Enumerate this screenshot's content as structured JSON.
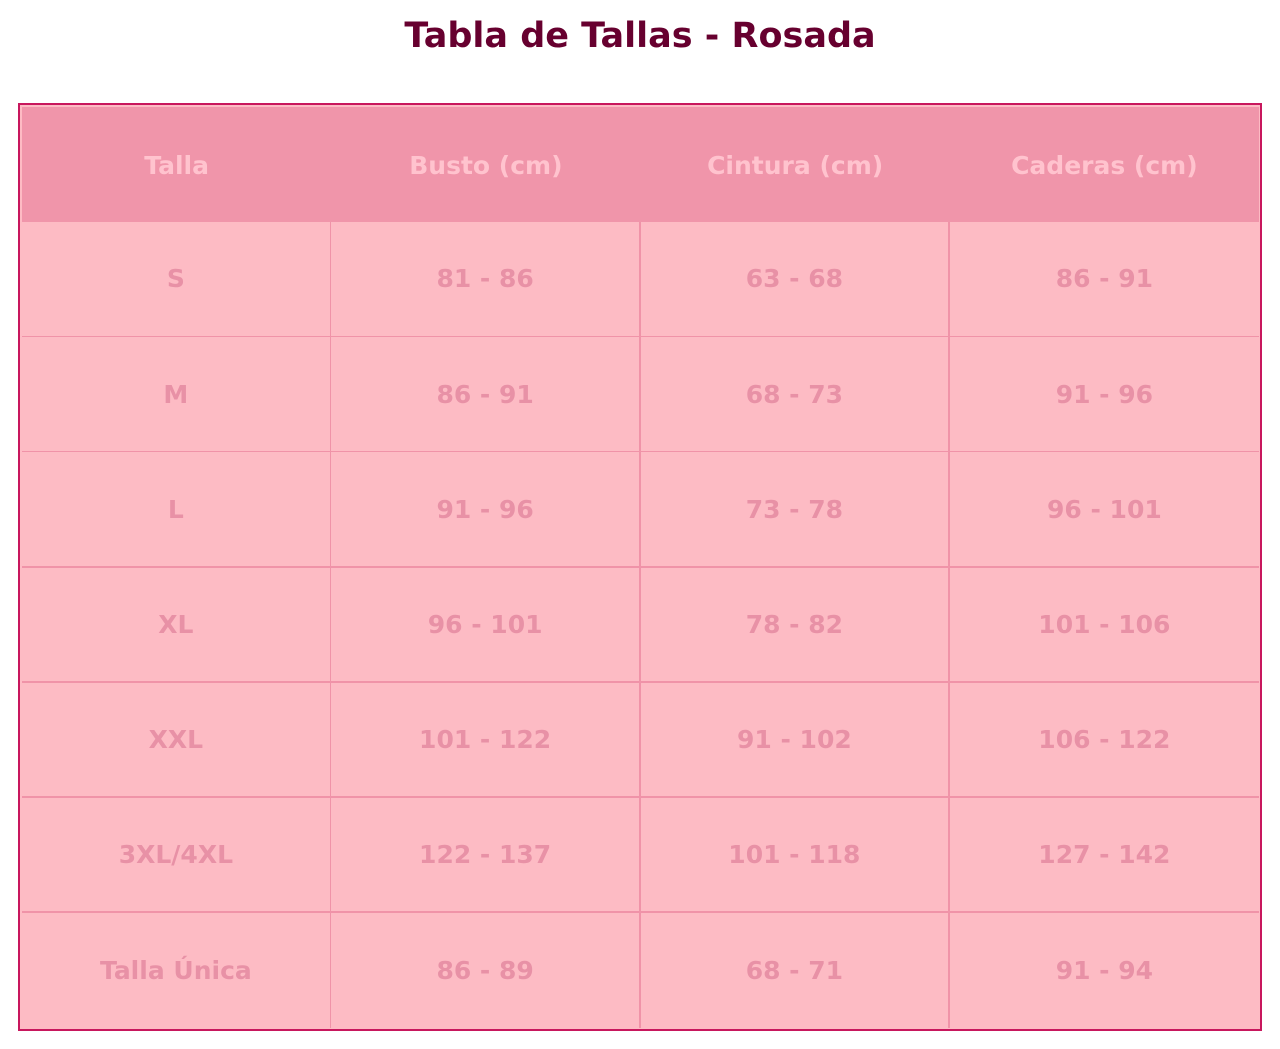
{
  "chart_data": {
    "type": "table",
    "title": "Tabla de Tallas - Rosada",
    "columns": [
      "Talla",
      "Busto (cm)",
      "Cintura (cm)",
      "Caderas (cm)"
    ],
    "rows": [
      [
        "S",
        "81 - 86",
        "63 - 68",
        "86 - 91"
      ],
      [
        "M",
        "86 - 91",
        "68 - 73",
        "91 - 96"
      ],
      [
        "L",
        "91 - 96",
        "73 - 78",
        "96 - 101"
      ],
      [
        "XL",
        "96 - 101",
        "78 - 82",
        "101 - 106"
      ],
      [
        "XXL",
        "101 - 122",
        "91 - 102",
        "106 - 122"
      ],
      [
        "3XL/4XL",
        "122 - 137",
        "101 - 118",
        "127 - 142"
      ],
      [
        "Talla Única",
        "86 - 89",
        "68 - 71",
        "91 - 94"
      ]
    ],
    "colors": {
      "title": "#67002F",
      "border": "#C8175D",
      "header_fill": "#F095AA",
      "header_text": "#FFC3CE",
      "cell_fill": "#FDBBC4",
      "cell_text": "#E891A6",
      "grid": "#F093A8"
    }
  }
}
